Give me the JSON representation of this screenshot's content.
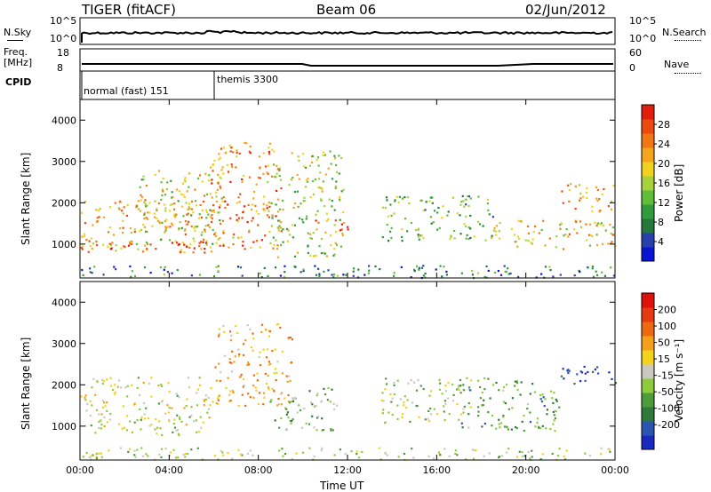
{
  "header": {
    "radar": "TIGER (fitACF)",
    "beam": "Beam 06",
    "date": "02/Jun/2012"
  },
  "noise_panel": {
    "left_label": "N.Sky",
    "right_label": "N.Search",
    "left_ticks": [
      "10^5",
      "10^0"
    ],
    "right_ticks": [
      "10^5",
      "10^0"
    ]
  },
  "freq_panel": {
    "left_label_1": "Freq.",
    "left_label_2": "[MHz]",
    "right_label": "Nave",
    "left_ticks": [
      "18",
      "8"
    ],
    "right_ticks": [
      "60",
      "0"
    ]
  },
  "cpid_panel": {
    "label": "CPID",
    "modes": [
      {
        "name": "normal (fast) 151",
        "start_hour": 0
      },
      {
        "name": "themis 3300",
        "start_hour": 6
      }
    ]
  },
  "chart_data": [
    {
      "type": "heatmap",
      "name": "power",
      "xlabel": "Time UT",
      "ylabel": "Slant Range [km]",
      "xlim": [
        0,
        24
      ],
      "ylim": [
        180,
        4500
      ],
      "x_ticks": [
        "00:00",
        "04:00",
        "08:00",
        "12:00",
        "16:00",
        "20:00",
        "00:00"
      ],
      "y_ticks": [
        1000,
        2000,
        3000,
        4000
      ],
      "colorbar": {
        "label": "Power [dB]",
        "ticks": [
          4,
          8,
          12,
          16,
          20,
          24,
          28
        ],
        "range": [
          0,
          32
        ],
        "colors": [
          "#0a14d4",
          "#2a3fae",
          "#23783c",
          "#2f9b3d",
          "#5fbd3a",
          "#a6d13a",
          "#f0d21c",
          "#f4a51a",
          "#f27614",
          "#ee4a10",
          "#e01e0a"
        ]
      },
      "regions": [
        {
          "t0": 0.0,
          "t1": 6.0,
          "r0": 800,
          "r1": 2100,
          "power": 22
        },
        {
          "t0": 0.0,
          "t1": 6.0,
          "r0": 900,
          "r1": 1100,
          "power": 28
        },
        {
          "t0": 2.5,
          "t1": 6.5,
          "r0": 1000,
          "r1": 2800,
          "power": 18
        },
        {
          "t0": 5.8,
          "t1": 9.0,
          "r0": 900,
          "r1": 3500,
          "power": 24
        },
        {
          "t0": 8.5,
          "t1": 11.8,
          "r0": 700,
          "r1": 3300,
          "power": 16
        },
        {
          "t0": 10.5,
          "t1": 12.2,
          "r0": 1200,
          "r1": 1600,
          "power": 26
        },
        {
          "t0": 13.5,
          "t1": 18.5,
          "r0": 1100,
          "r1": 2200,
          "power": 12
        },
        {
          "t0": 18.0,
          "t1": 24.0,
          "r0": 900,
          "r1": 1600,
          "power": 20
        },
        {
          "t0": 21.5,
          "t1": 24.0,
          "r0": 1800,
          "r1": 2500,
          "power": 22
        },
        {
          "t0": 0.0,
          "t1": 24.0,
          "r0": 200,
          "r1": 500,
          "power": 8
        }
      ]
    },
    {
      "type": "heatmap",
      "name": "velocity",
      "xlabel": "Time UT",
      "ylabel": "Slant Range [km]",
      "xlim": [
        0,
        24
      ],
      "ylim": [
        180,
        4500
      ],
      "x_ticks": [
        "00:00",
        "04:00",
        "08:00",
        "12:00",
        "16:00",
        "20:00",
        "00:00"
      ],
      "y_ticks": [
        1000,
        2000,
        3000,
        4000
      ],
      "colorbar": {
        "label": "Velocity [m s⁻¹]",
        "ticks": [
          200,
          100,
          50,
          15,
          -15,
          -50,
          -100,
          -200
        ],
        "range": [
          -250,
          250
        ],
        "colors": [
          "#1a2ac0",
          "#2a55b0",
          "#2f7a3a",
          "#4e9b3a",
          "#8dcc3a",
          "#c9c9c0",
          "#f2d21a",
          "#f5a01a",
          "#ee6a10",
          "#e83a10",
          "#e0100a"
        ]
      },
      "regions": [
        {
          "t0": 0.0,
          "t1": 6.0,
          "r0": 800,
          "r1": 2200,
          "velocity": 0
        },
        {
          "t0": 6.0,
          "t1": 9.5,
          "r0": 1500,
          "r1": 3500,
          "velocity": 80
        },
        {
          "t0": 8.5,
          "t1": 11.5,
          "r0": 900,
          "r1": 2000,
          "velocity": -60
        },
        {
          "t0": 13.5,
          "t1": 17.5,
          "r0": 1100,
          "r1": 2200,
          "velocity": -20
        },
        {
          "t0": 17.0,
          "t1": 21.5,
          "r0": 900,
          "r1": 2200,
          "velocity": -90
        },
        {
          "t0": 21.5,
          "t1": 24.0,
          "r0": 2000,
          "r1": 2500,
          "velocity": -220
        },
        {
          "t0": 0.0,
          "t1": 24.0,
          "r0": 200,
          "r1": 500,
          "velocity": -30
        }
      ]
    }
  ]
}
